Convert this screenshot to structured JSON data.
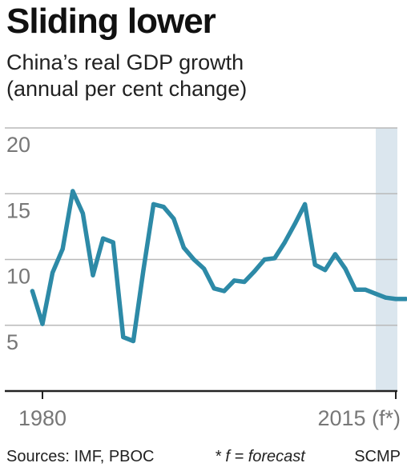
{
  "header": {
    "title": "Sliding lower",
    "subtitle_line1": "China’s real GDP growth",
    "subtitle_line2": "(annual per cent change)"
  },
  "footer": {
    "sources": "Sources: IMF, PBOC",
    "note": "* f = forecast",
    "credit": "SCMP"
  },
  "colors": {
    "line": "#2d8aa7",
    "forecast_band": "#dbe6ee",
    "gridline": "#b9b9b9",
    "axis": "#222222",
    "tick_label": "#777777"
  },
  "chart_data": {
    "type": "line",
    "ylim": [
      0,
      20
    ],
    "xlim": [
      1979,
      2016
    ],
    "yticks": [
      {
        "value": 20,
        "label": "20"
      },
      {
        "value": 15,
        "label": "15"
      },
      {
        "value": 10,
        "label": "10"
      },
      {
        "value": 5,
        "label": "5"
      }
    ],
    "xticks": [
      {
        "value": 1980,
        "label": "1980"
      },
      {
        "value": 2015,
        "label": "2015 (f*)"
      }
    ],
    "forecast_band": [
      2014,
      2016
    ],
    "grid": true,
    "series": [
      {
        "x": [
          1979,
          1980,
          1981,
          1982,
          1983,
          1984,
          1985,
          1986,
          1987,
          1988,
          1989,
          1990,
          1991,
          1992,
          1993,
          1994,
          1995,
          1996,
          1997,
          1998,
          1999,
          2000,
          2001,
          2002,
          2003,
          2004,
          2005,
          2006,
          2007,
          2008,
          2009,
          2010,
          2011,
          2012,
          2013,
          2014,
          2015,
          2016
        ],
        "y": [
          7.6,
          5.1,
          9.0,
          10.8,
          15.2,
          13.5,
          8.8,
          11.6,
          11.3,
          4.1,
          3.8,
          9.2,
          14.2,
          14.0,
          13.1,
          10.9,
          10.0,
          9.3,
          7.8,
          7.6,
          8.4,
          8.3,
          9.1,
          10.0,
          10.1,
          11.3,
          12.7,
          14.2,
          9.6,
          9.2,
          10.4,
          9.3,
          7.7,
          7.7,
          7.4,
          7.1,
          7.0,
          7.0
        ]
      }
    ]
  }
}
